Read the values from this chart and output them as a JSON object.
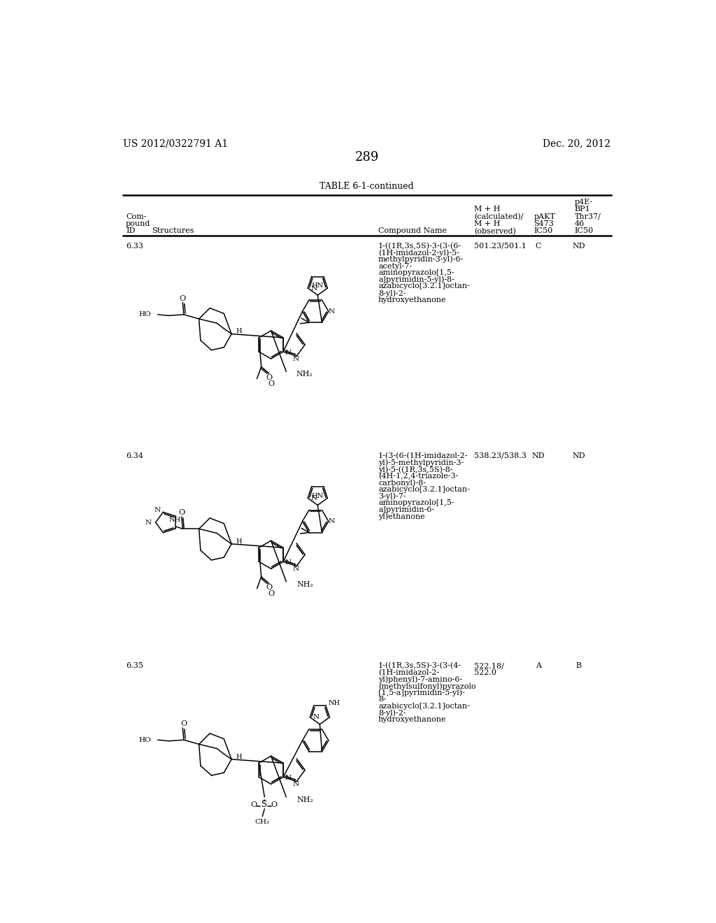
{
  "page_number": "289",
  "patent_number": "US 2012/0322791 A1",
  "patent_date": "Dec. 20, 2012",
  "table_title": "TABLE 6-1-continued",
  "background_color": "#ffffff",
  "text_color": "#000000",
  "rows": [
    {
      "id": "6.33",
      "mh": "501.23/501.1",
      "pakt": "C",
      "p4e": "ND",
      "name_lines": [
        "1-((1R,3s,5S)-3-(3-(6-",
        "(1H-imidazol-2-yl)-5-",
        "methylpyridin-3-yl)-6-",
        "acetyl-7-",
        "aminopyrazolo[1,5-",
        "a]pyrimidin-5-yl)-8-",
        "azabicyclo[3.2.1]octan-",
        "8-yl)-2-",
        "hydroxyethanone"
      ]
    },
    {
      "id": "6.34",
      "mh": "538.23/538.3",
      "pakt": "ND",
      "p4e": "ND",
      "name_lines": [
        "1-(3-(6-(1H-imidazol-2-",
        "yl)-5-methylpyridin-3-",
        "yl)-5-((1R,3s,5S)-8-",
        "(4H-1,2,4-triazole-3-",
        "carbonyl)-8-",
        "azabicyclo[3.2.1]octan-",
        "3-yl)-7-",
        "aminopyrazolo[1,5-",
        "a]pyrimidin-6-",
        "yl)ethanone"
      ]
    },
    {
      "id": "6.35",
      "mh_line1": "522.18/",
      "mh_line2": "522.0",
      "pakt": "A",
      "p4e": "B",
      "name_lines": [
        "1-((1R,3s,5S)-3-(3-(4-",
        "(1H-imidazol-2-",
        "yl)phenyl)-7-amino-6-",
        "(methylsulfonyl)pyrazolo",
        "[1,5-a]pyrimidin-5-yl)-",
        "8-",
        "azabicyclo[3.2.1]octan-",
        "8-yl)-2-",
        "hydroxyethanone"
      ]
    }
  ]
}
